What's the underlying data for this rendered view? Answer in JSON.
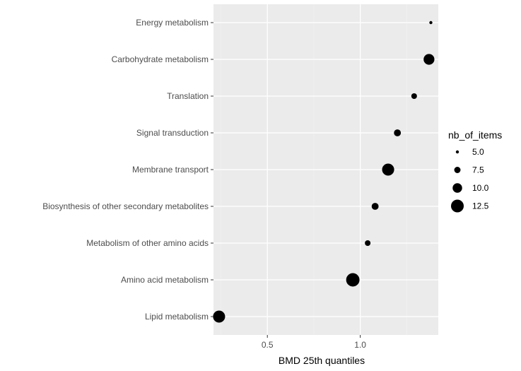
{
  "chart_data": {
    "type": "scatter",
    "title": "",
    "xlabel": "BMD 25th quantiles",
    "ylabel": "",
    "xlim": [
      0.21,
      1.42
    ],
    "x_ticks": [
      {
        "value": 0.5,
        "label": "0.5"
      },
      {
        "value": 1.0,
        "label": "1.0"
      }
    ],
    "categories": [
      "Lipid metabolism",
      "Amino acid metabolism",
      "Metabolism of other amino acids",
      "Biosynthesis of other secondary metabolites",
      "Membrane transport",
      "Signal transduction",
      "Translation",
      "Carbohydrate metabolism",
      "Energy metabolism"
    ],
    "points": [
      {
        "category": "Energy metabolism",
        "x": 1.38,
        "size": 5
      },
      {
        "category": "Carbohydrate metabolism",
        "x": 1.37,
        "size": 11
      },
      {
        "category": "Translation",
        "x": 1.29,
        "size": 7
      },
      {
        "category": "Signal transduction",
        "x": 1.2,
        "size": 8
      },
      {
        "category": "Membrane transport",
        "x": 1.15,
        "size": 12
      },
      {
        "category": "Biosynthesis of other secondary metabolites",
        "x": 1.08,
        "size": 8
      },
      {
        "category": "Metabolism of other amino acids",
        "x": 1.04,
        "size": 7
      },
      {
        "category": "Amino acid metabolism",
        "x": 0.96,
        "size": 13
      },
      {
        "category": "Lipid metabolism",
        "x": 0.24,
        "size": 12
      }
    ],
    "size_legend": {
      "title": "nb_of_items",
      "values": [
        5.0,
        7.5,
        10.0,
        12.5
      ],
      "labels": [
        "5.0",
        "7.5",
        "10.0",
        "12.5"
      ]
    },
    "grid": true,
    "legend_position": "right",
    "colors": {
      "panel_background": "#ebebeb",
      "grid_major": "#ffffff",
      "point": "#000000"
    }
  }
}
